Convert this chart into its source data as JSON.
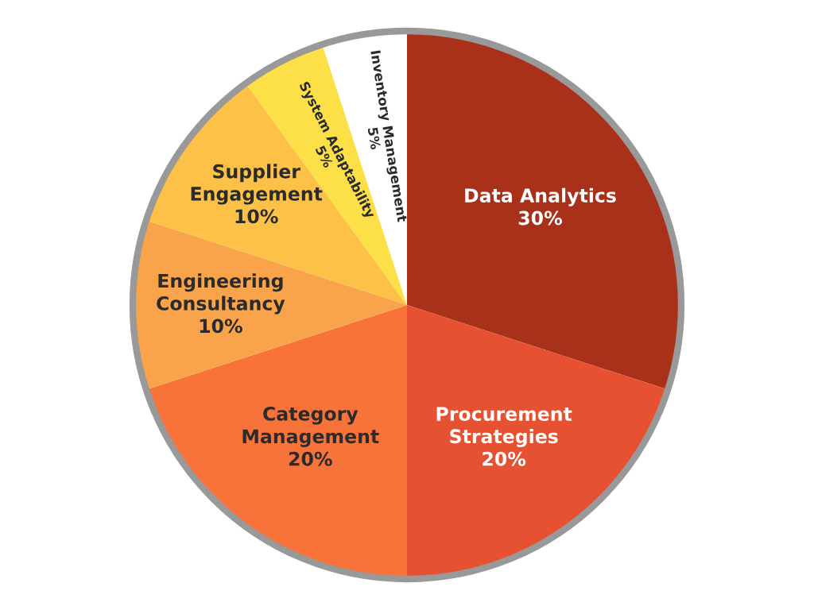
{
  "chart_data": {
    "type": "pie",
    "categories": [
      "Data Analytics",
      "Procurement Strategies",
      "Category Management",
      "Engineering Consultancy",
      "Supplier Engagement",
      "System Adaptability",
      "Inventory Management"
    ],
    "values": [
      30,
      20,
      20,
      10,
      10,
      5,
      5
    ],
    "colors": [
      "#a93019",
      "#e65132",
      "#f7733a",
      "#f9a44a",
      "#fcc146",
      "#fde047",
      "#ffffff"
    ],
    "value_labels": [
      "30%",
      "20%",
      "20%",
      "10%",
      "10%",
      "5%",
      "5%"
    ]
  }
}
